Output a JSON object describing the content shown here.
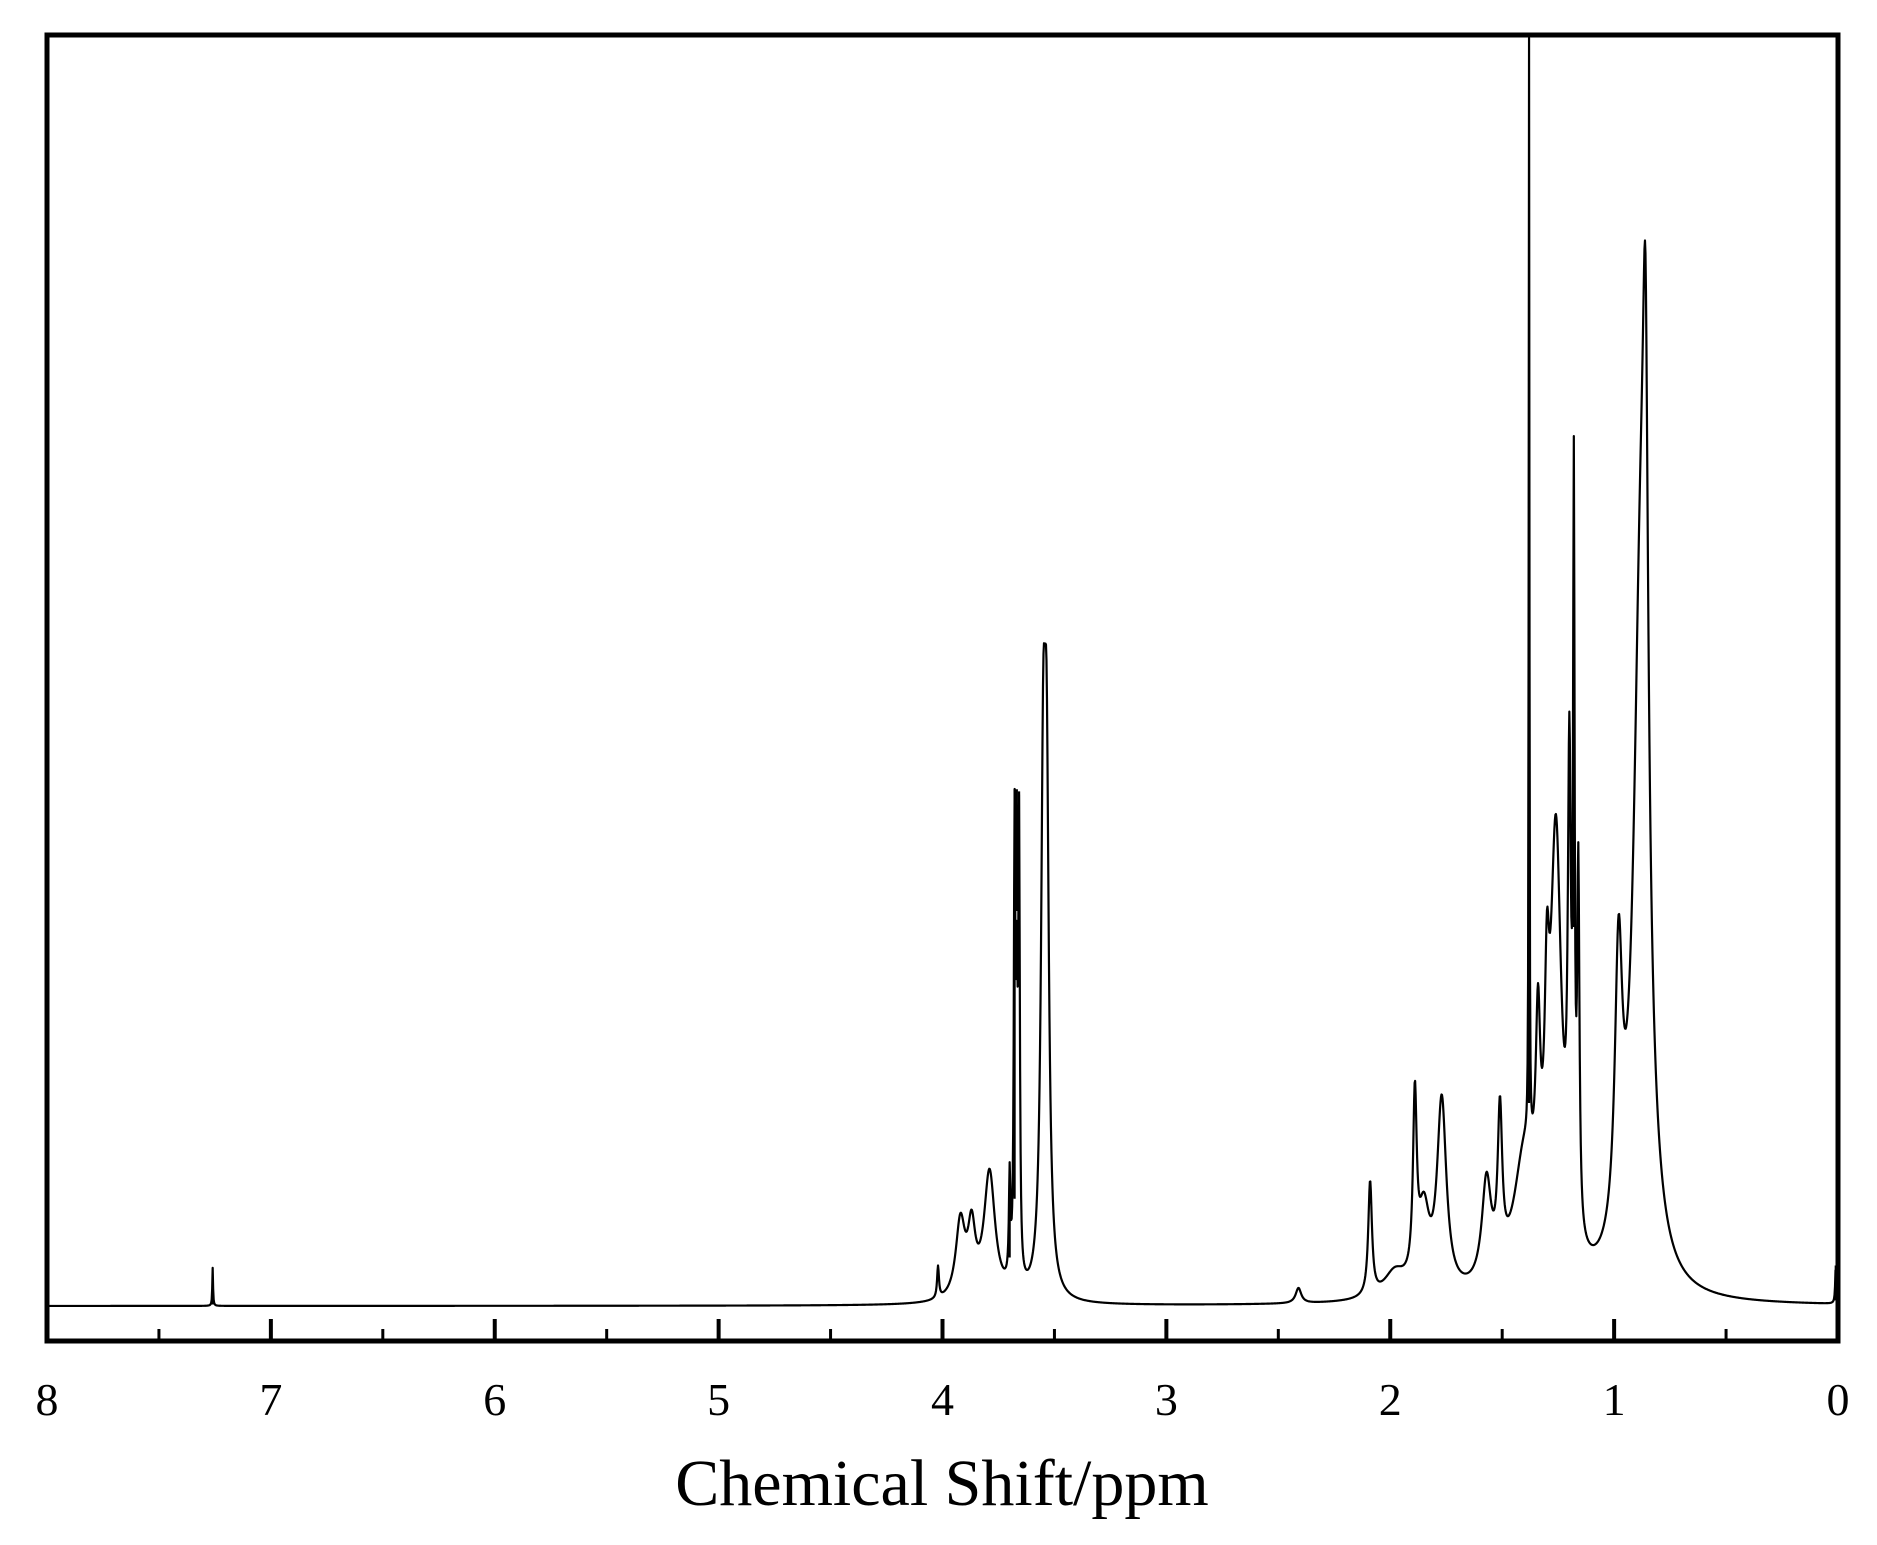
{
  "chart_data": {
    "type": "line",
    "title": "",
    "xlabel": "Chemical Shift/ppm",
    "ylabel": "",
    "x_reversed": true,
    "xlim": [
      8,
      0
    ],
    "ylim": [
      0,
      1
    ],
    "x_major_ticks": [
      8,
      7,
      6,
      5,
      4,
      3,
      2,
      1,
      0
    ],
    "x_tick_labels": [
      "8",
      "7",
      "6",
      "5",
      "4",
      "3",
      "2",
      "1",
      "0"
    ],
    "x_minor_ticks": [
      7.5,
      6.5,
      5.5,
      4.5,
      3.5,
      2.5,
      1.5,
      0.5
    ],
    "grid": false,
    "legend": false,
    "line_color": "#000000",
    "series": [
      {
        "peaks": [
          {
            "shift": 7.26,
            "height": 0.03,
            "width": 0.002
          },
          {
            "shift": 4.02,
            "height": 0.025,
            "width": 0.005
          },
          {
            "shift": 3.92,
            "height": 0.06,
            "width": 0.025
          },
          {
            "shift": 3.87,
            "height": 0.05,
            "width": 0.02
          },
          {
            "shift": 3.79,
            "height": 0.1,
            "width": 0.03
          },
          {
            "shift": 3.7,
            "height": 0.08,
            "width": 0.004
          },
          {
            "shift": 3.678,
            "height": 0.35,
            "width": 0.004
          },
          {
            "shift": 3.668,
            "height": 0.2,
            "width": 0.004
          },
          {
            "shift": 3.658,
            "height": 0.35,
            "width": 0.004
          },
          {
            "shift": 3.55,
            "height": 0.36,
            "width": 0.012
          },
          {
            "shift": 3.535,
            "height": 0.36,
            "width": 0.012
          },
          {
            "shift": 2.41,
            "height": 0.012,
            "width": 0.015
          },
          {
            "shift": 2.09,
            "height": 0.09,
            "width": 0.01
          },
          {
            "shift": 1.98,
            "height": 0.02,
            "width": 0.06
          },
          {
            "shift": 1.89,
            "height": 0.14,
            "width": 0.01
          },
          {
            "shift": 1.85,
            "height": 0.06,
            "width": 0.03
          },
          {
            "shift": 1.77,
            "height": 0.15,
            "width": 0.025
          },
          {
            "shift": 1.57,
            "height": 0.08,
            "width": 0.025
          },
          {
            "shift": 1.51,
            "height": 0.12,
            "width": 0.012
          },
          {
            "shift": 1.4,
            "height": 0.1,
            "width": 0.06
          },
          {
            "shift": 1.38,
            "height": 1.2,
            "width": 0.0015
          },
          {
            "shift": 1.34,
            "height": 0.14,
            "width": 0.012
          },
          {
            "shift": 1.3,
            "height": 0.14,
            "width": 0.012
          },
          {
            "shift": 1.26,
            "height": 0.34,
            "width": 0.03
          },
          {
            "shift": 1.2,
            "height": 0.35,
            "width": 0.008
          },
          {
            "shift": 1.18,
            "height": 0.55,
            "width": 0.004
          },
          {
            "shift": 1.16,
            "height": 0.28,
            "width": 0.006
          },
          {
            "shift": 0.98,
            "height": 0.22,
            "width": 0.02
          },
          {
            "shift": 0.88,
            "height": 0.55,
            "width": 0.04
          },
          {
            "shift": 0.86,
            "height": 0.38,
            "width": 0.014
          },
          {
            "shift": 0.01,
            "height": 0.03,
            "width": 0.003
          }
        ]
      }
    ]
  }
}
